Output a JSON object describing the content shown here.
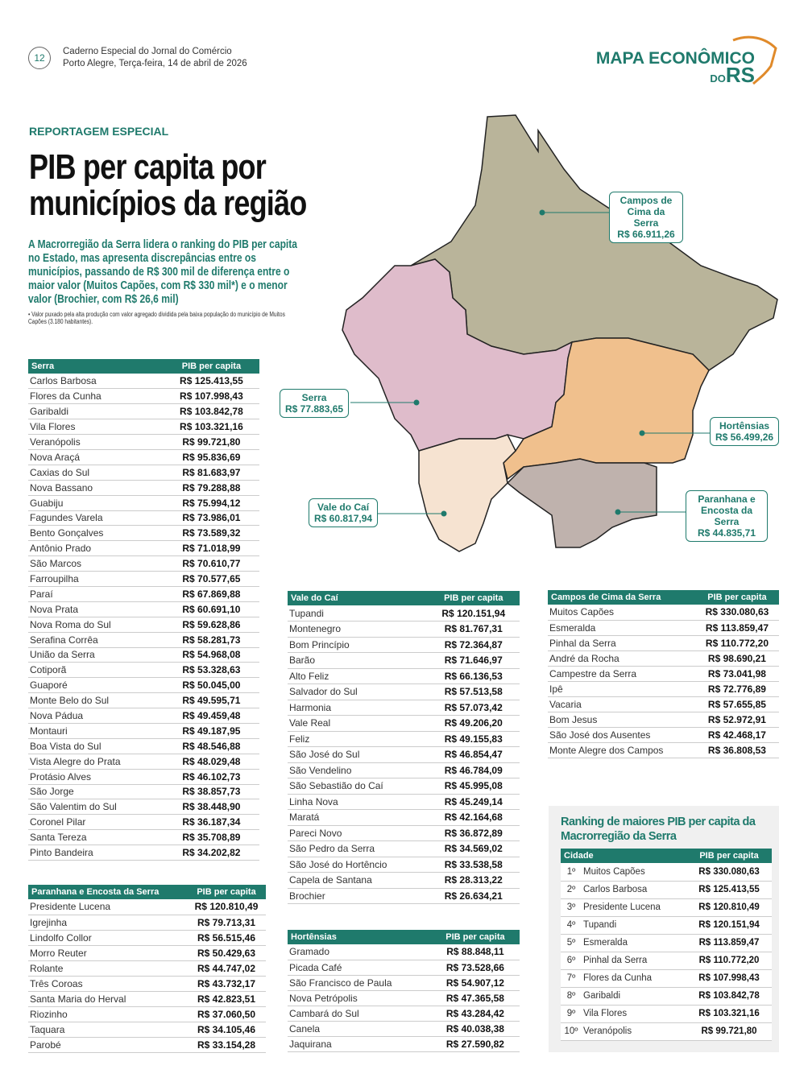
{
  "header": {
    "page_number": "12",
    "line1": "Caderno Especial do Jornal do Comércio",
    "line2": "Porto Alegre, Terça-feira, 14 de abril de 2026",
    "logo": {
      "main": "MAPA ECONÔMICO",
      "do": "DO",
      "rs": "RS"
    }
  },
  "article": {
    "kicker": "REPORTAGEM ESPECIAL",
    "title": "PIB per capita por municípios da região",
    "lead": "A Macrorregião da Serra lidera o ranking do PIB per capita no Estado, mas apresenta discrepâncias entre os municípios, passando de R$ 300 mil de diferença entre o maior valor (Muitos Capões, com R$ 330 mil*) e o menor valor (Brochier, com R$ 26,6 mil)",
    "note": "• Valor puxado pela alta produção com valor agregado dividida pela baixa população do município de Muitos Capões (3.180 habitantes)."
  },
  "map": {
    "regions": [
      {
        "name": "Campos de Cima da Serra",
        "value": "R$ 66.911,26",
        "color": "#b9b49a"
      },
      {
        "name": "Serra",
        "value": "R$ 77.883,65",
        "color": "#dfbccb"
      },
      {
        "name": "Hortênsias",
        "value": "R$ 56.499,26",
        "color": "#f0c08d"
      },
      {
        "name": "Paranhana e Encosta da Serra",
        "value": "R$ 44.835,71",
        "color": "#bfb2ad"
      },
      {
        "name": "Vale do Caí",
        "value": "R$ 60.817,94",
        "color": "#f6e3d1"
      }
    ]
  },
  "col_header": "PIB per capita",
  "tables": {
    "serra": {
      "title": "Serra",
      "rows": [
        [
          "Carlos Barbosa",
          "R$ 125.413,55"
        ],
        [
          "Flores da Cunha",
          "R$ 107.998,43"
        ],
        [
          "Garibaldi",
          "R$ 103.842,78"
        ],
        [
          "Vila Flores",
          "R$ 103.321,16"
        ],
        [
          "Veranópolis",
          "R$ 99.721,80"
        ],
        [
          "Nova Araçá",
          "R$ 95.836,69"
        ],
        [
          "Caxias do Sul",
          "R$ 81.683,97"
        ],
        [
          "Nova Bassano",
          "R$ 79.288,88"
        ],
        [
          "Guabiju",
          "R$ 75.994,12"
        ],
        [
          "Fagundes Varela",
          "R$ 73.986,01"
        ],
        [
          "Bento Gonçalves",
          "R$ 73.589,32"
        ],
        [
          "Antônio Prado",
          "R$ 71.018,99"
        ],
        [
          "São Marcos",
          "R$ 70.610,77"
        ],
        [
          "Farroupilha",
          "R$ 70.577,65"
        ],
        [
          "Paraí",
          "R$ 67.869,88"
        ],
        [
          "Nova Prata",
          "R$ 60.691,10"
        ],
        [
          "Nova Roma do Sul",
          "R$ 59.628,86"
        ],
        [
          "Serafina Corrêa",
          "R$ 58.281,73"
        ],
        [
          "União da Serra",
          "R$ 54.968,08"
        ],
        [
          "Cotiporã",
          "R$ 53.328,63"
        ],
        [
          "Guaporé",
          "R$ 50.045,00"
        ],
        [
          "Monte Belo do Sul",
          "R$ 49.595,71"
        ],
        [
          "Nova Pádua",
          "R$ 49.459,48"
        ],
        [
          "Montauri",
          "R$ 49.187,95"
        ],
        [
          "Boa Vista do Sul",
          "R$ 48.546,88"
        ],
        [
          "Vista Alegre do Prata",
          "R$ 48.029,48"
        ],
        [
          "Protásio Alves",
          "R$ 46.102,73"
        ],
        [
          "São Jorge",
          "R$ 38.857,73"
        ],
        [
          "São Valentim do Sul",
          "R$ 38.448,90"
        ],
        [
          "Coronel Pilar",
          "R$ 36.187,34"
        ],
        [
          "Santa Tereza",
          "R$ 35.708,89"
        ],
        [
          "Pinto Bandeira",
          "R$ 34.202,82"
        ]
      ]
    },
    "paranhana": {
      "title": "Paranhana e Encosta da Serra",
      "rows": [
        [
          "Presidente Lucena",
          "R$ 120.810,49"
        ],
        [
          "Igrejinha",
          "R$ 79.713,31"
        ],
        [
          "Lindolfo Collor",
          "R$ 56.515,46"
        ],
        [
          "Morro Reuter",
          "R$ 50.429,63"
        ],
        [
          "Rolante",
          "R$ 44.747,02"
        ],
        [
          "Três Coroas",
          "R$ 43.732,17"
        ],
        [
          "Santa Maria do Herval",
          "R$ 42.823,51"
        ],
        [
          "Riozinho",
          "R$ 37.060,50"
        ],
        [
          "Taquara",
          "R$ 34.105,46"
        ],
        [
          "Parobé",
          "R$ 33.154,28"
        ]
      ]
    },
    "valecai": {
      "title": "Vale do Caí",
      "rows": [
        [
          "Tupandi",
          "R$ 120.151,94"
        ],
        [
          "Montenegro",
          "R$ 81.767,31"
        ],
        [
          "Bom Princípio",
          "R$ 72.364,87"
        ],
        [
          "Barão",
          "R$ 71.646,97"
        ],
        [
          "Alto Feliz",
          "R$ 66.136,53"
        ],
        [
          "Salvador do Sul",
          "R$ 57.513,58"
        ],
        [
          "Harmonia",
          "R$ 57.073,42"
        ],
        [
          "Vale Real",
          "R$ 49.206,20"
        ],
        [
          "Feliz",
          "R$ 49.155,83"
        ],
        [
          "São José do Sul",
          "R$ 46.854,47"
        ],
        [
          "São Vendelino",
          "R$ 46.784,09"
        ],
        [
          "São Sebastião do Caí",
          "R$ 45.995,08"
        ],
        [
          "Linha Nova",
          "R$ 45.249,14"
        ],
        [
          "Maratá",
          "R$ 42.164,68"
        ],
        [
          "Pareci Novo",
          "R$ 36.872,89"
        ],
        [
          "São Pedro da Serra",
          "R$ 34.569,02"
        ],
        [
          "São José do Hortêncio",
          "R$ 33.538,58"
        ],
        [
          "Capela de Santana",
          "R$ 28.313,22"
        ],
        [
          "Brochier",
          "R$ 26.634,21"
        ]
      ]
    },
    "hortensias": {
      "title": "Hortênsias",
      "rows": [
        [
          "Gramado",
          "R$ 88.848,11"
        ],
        [
          "Picada Café",
          "R$ 73.528,66"
        ],
        [
          "São Francisco de Paula",
          "R$ 54.907,12"
        ],
        [
          "Nova Petrópolis",
          "R$ 47.365,58"
        ],
        [
          "Cambará do Sul",
          "R$ 43.284,42"
        ],
        [
          "Canela",
          "R$ 40.038,38"
        ],
        [
          "Jaquirana",
          "R$ 27.590,82"
        ]
      ]
    },
    "campos": {
      "title": "Campos de Cima da Serra",
      "rows": [
        [
          "Muitos Capões",
          "R$ 330.080,63"
        ],
        [
          "Esmeralda",
          "R$ 113.859,47"
        ],
        [
          "Pinhal da Serra",
          "R$ 110.772,20"
        ],
        [
          "André da Rocha",
          "R$ 98.690,21"
        ],
        [
          "Campestre da Serra",
          "R$ 73.041,98"
        ],
        [
          "Ipê",
          "R$ 72.776,89"
        ],
        [
          "Vacaria",
          "R$ 57.655,85"
        ],
        [
          "Bom Jesus",
          "R$ 52.972,91"
        ],
        [
          "São José dos Ausentes",
          "R$ 42.468,17"
        ],
        [
          "Monte Alegre dos Campos",
          "R$ 36.808,53"
        ]
      ]
    }
  },
  "ranking": {
    "title": "Ranking de maiores PIB per capita da Macrorregião da Serra",
    "col_city": "Cidade",
    "col_value": "PIB per capita",
    "rows": [
      [
        "1º",
        "Muitos Capões",
        "R$ 330.080,63"
      ],
      [
        "2º",
        "Carlos Barbosa",
        "R$ 125.413,55"
      ],
      [
        "3º",
        "Presidente Lucena",
        "R$ 120.810,49"
      ],
      [
        "4º",
        "Tupandi",
        "R$ 120.151,94"
      ],
      [
        "5º",
        "Esmeralda",
        "R$ 113.859,47"
      ],
      [
        "6º",
        "Pinhal da Serra",
        "R$ 110.772,20"
      ],
      [
        "7º",
        "Flores da Cunha",
        "R$ 107.998,43"
      ],
      [
        "8º",
        "Garibaldi",
        "R$ 103.842,78"
      ],
      [
        "9º",
        "Vila Flores",
        "R$ 103.321,16"
      ],
      [
        "10º",
        "Veranópolis",
        "R$ 99.721,80"
      ]
    ]
  }
}
